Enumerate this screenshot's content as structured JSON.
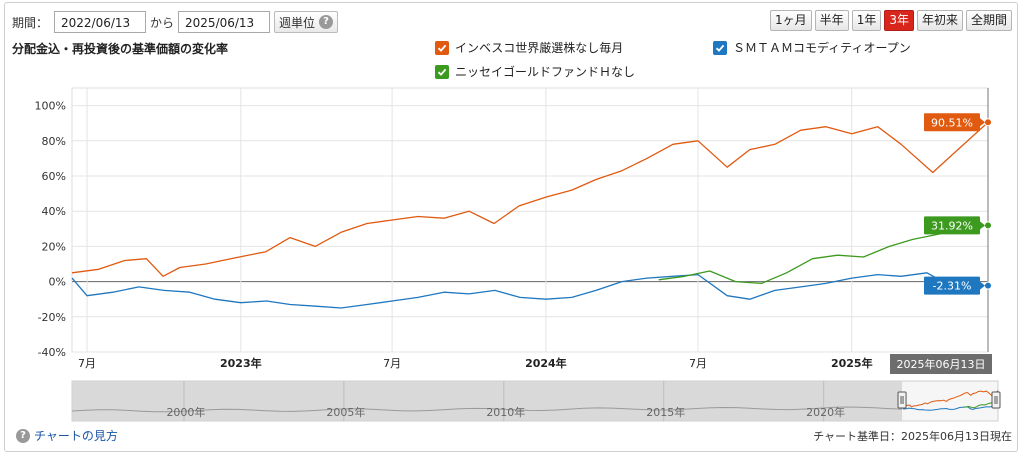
{
  "controls": {
    "period_label": "期間：",
    "from_date": "2022/06/13",
    "kara": "から",
    "to_date": "2025/06/13",
    "unit": "週単位",
    "unit_help": "?",
    "ranges": [
      {
        "label": "1ヶ月",
        "active": false
      },
      {
        "label": "半年",
        "active": false
      },
      {
        "label": "1年",
        "active": false
      },
      {
        "label": "3年",
        "active": true
      },
      {
        "label": "年初来",
        "active": false
      },
      {
        "label": "全期間",
        "active": false
      }
    ]
  },
  "colors": {
    "orange": "#e05a10",
    "blue": "#1f77c0",
    "green": "#3c9a1e",
    "zero": "#666666",
    "grid": "#e4e4e4"
  },
  "footer": {
    "help_icon": "?",
    "how_to_read": "チャートの見方",
    "basis": "チャート基準日：2025年06月13日現在"
  },
  "chart_data": {
    "type": "line",
    "title": "分配金込・再投資後の基準価額の変化率",
    "y_unit": "%",
    "ylim": [
      -40,
      110
    ],
    "y_ticks": [
      -40,
      -20,
      0,
      20,
      40,
      60,
      80,
      100
    ],
    "y_tick_labels": [
      "-40%",
      "-20%",
      "0%",
      "20%",
      "40%",
      "60%",
      "80%",
      "100%"
    ],
    "xlim": [
      "2022-06-13",
      "2025-06-13"
    ],
    "x_ticks": [
      {
        "date": "2022-07-01",
        "label": "7月",
        "bold": false
      },
      {
        "date": "2023-01-01",
        "label": "2023年",
        "bold": true
      },
      {
        "date": "2023-07-01",
        "label": "7月",
        "bold": false
      },
      {
        "date": "2024-01-01",
        "label": "2024年",
        "bold": true
      },
      {
        "date": "2024-07-01",
        "label": "7月",
        "bold": false
      },
      {
        "date": "2025-01-01",
        "label": "2025年",
        "bold": true
      }
    ],
    "cursor_date_label": "2025年06月13日",
    "legend_position": "top",
    "series": [
      {
        "name": "インベスコ世界厳選株なし毎月",
        "color": "#e05a10",
        "end_label": "90.51%",
        "points": [
          [
            "2022-06-13",
            5
          ],
          [
            "2022-07-15",
            7
          ],
          [
            "2022-08-15",
            12
          ],
          [
            "2022-09-10",
            13
          ],
          [
            "2022-09-30",
            3
          ],
          [
            "2022-10-20",
            8
          ],
          [
            "2022-11-20",
            10
          ],
          [
            "2022-12-20",
            13
          ],
          [
            "2023-01-31",
            17
          ],
          [
            "2023-03-01",
            25
          ],
          [
            "2023-03-31",
            20
          ],
          [
            "2023-05-01",
            28
          ],
          [
            "2023-06-01",
            33
          ],
          [
            "2023-07-01",
            35
          ],
          [
            "2023-08-01",
            37
          ],
          [
            "2023-09-01",
            36
          ],
          [
            "2023-10-01",
            40
          ],
          [
            "2023-10-31",
            33
          ],
          [
            "2023-11-30",
            43
          ],
          [
            "2024-01-01",
            48
          ],
          [
            "2024-02-01",
            52
          ],
          [
            "2024-03-01",
            58
          ],
          [
            "2024-04-01",
            63
          ],
          [
            "2024-05-01",
            70
          ],
          [
            "2024-06-01",
            78
          ],
          [
            "2024-07-01",
            80
          ],
          [
            "2024-08-05",
            65
          ],
          [
            "2024-09-01",
            75
          ],
          [
            "2024-10-01",
            78
          ],
          [
            "2024-11-01",
            86
          ],
          [
            "2024-12-01",
            88
          ],
          [
            "2025-01-01",
            84
          ],
          [
            "2025-02-01",
            88
          ],
          [
            "2025-03-01",
            78
          ],
          [
            "2025-04-08",
            62
          ],
          [
            "2025-05-01",
            72
          ],
          [
            "2025-06-13",
            90.51
          ]
        ]
      },
      {
        "name": "ＳＭＴＡＭコモディティオープン",
        "color": "#1f77c0",
        "end_label": "-2.31%",
        "points": [
          [
            "2022-06-13",
            2
          ],
          [
            "2022-07-01",
            -8
          ],
          [
            "2022-08-01",
            -6
          ],
          [
            "2022-09-01",
            -3
          ],
          [
            "2022-10-01",
            -5
          ],
          [
            "2022-11-01",
            -6
          ],
          [
            "2022-12-01",
            -10
          ],
          [
            "2023-01-01",
            -12
          ],
          [
            "2023-02-01",
            -11
          ],
          [
            "2023-03-01",
            -13
          ],
          [
            "2023-04-01",
            -14
          ],
          [
            "2023-05-01",
            -15
          ],
          [
            "2023-06-01",
            -13
          ],
          [
            "2023-07-01",
            -11
          ],
          [
            "2023-08-01",
            -9
          ],
          [
            "2023-09-01",
            -6
          ],
          [
            "2023-10-01",
            -7
          ],
          [
            "2023-11-01",
            -5
          ],
          [
            "2023-12-01",
            -9
          ],
          [
            "2024-01-01",
            -10
          ],
          [
            "2024-02-01",
            -9
          ],
          [
            "2024-03-01",
            -5
          ],
          [
            "2024-04-01",
            0
          ],
          [
            "2024-05-01",
            2
          ],
          [
            "2024-06-01",
            3
          ],
          [
            "2024-07-01",
            4
          ],
          [
            "2024-08-05",
            -8
          ],
          [
            "2024-09-01",
            -10
          ],
          [
            "2024-10-01",
            -5
          ],
          [
            "2024-11-01",
            -3
          ],
          [
            "2024-12-01",
            -1
          ],
          [
            "2025-01-01",
            2
          ],
          [
            "2025-02-01",
            4
          ],
          [
            "2025-03-01",
            3
          ],
          [
            "2025-04-01",
            5
          ],
          [
            "2025-05-01",
            -3
          ],
          [
            "2025-06-13",
            -2.31
          ]
        ]
      },
      {
        "name": "ニッセイゴールドファンドＨなし",
        "color": "#3c9a1e",
        "end_label": "31.92%",
        "points": [
          [
            "2024-05-15",
            1
          ],
          [
            "2024-06-15",
            3
          ],
          [
            "2024-07-15",
            6
          ],
          [
            "2024-08-15",
            0
          ],
          [
            "2024-09-15",
            -1
          ],
          [
            "2024-10-15",
            5
          ],
          [
            "2024-11-15",
            13
          ],
          [
            "2024-12-15",
            15
          ],
          [
            "2025-01-15",
            14
          ],
          [
            "2025-02-15",
            20
          ],
          [
            "2025-03-15",
            24
          ],
          [
            "2025-04-15",
            27
          ],
          [
            "2025-05-15",
            30
          ],
          [
            "2025-06-13",
            31.92
          ]
        ]
      }
    ],
    "navigator": {
      "labels": [
        "2000年",
        "2005年",
        "2010年",
        "2015年",
        "2020年"
      ],
      "label_years": [
        2000,
        2005,
        2010,
        2015,
        2020
      ],
      "start_year": 1996.5,
      "end_year": 2025.45,
      "selection": [
        2022.45,
        2025.45
      ]
    }
  }
}
